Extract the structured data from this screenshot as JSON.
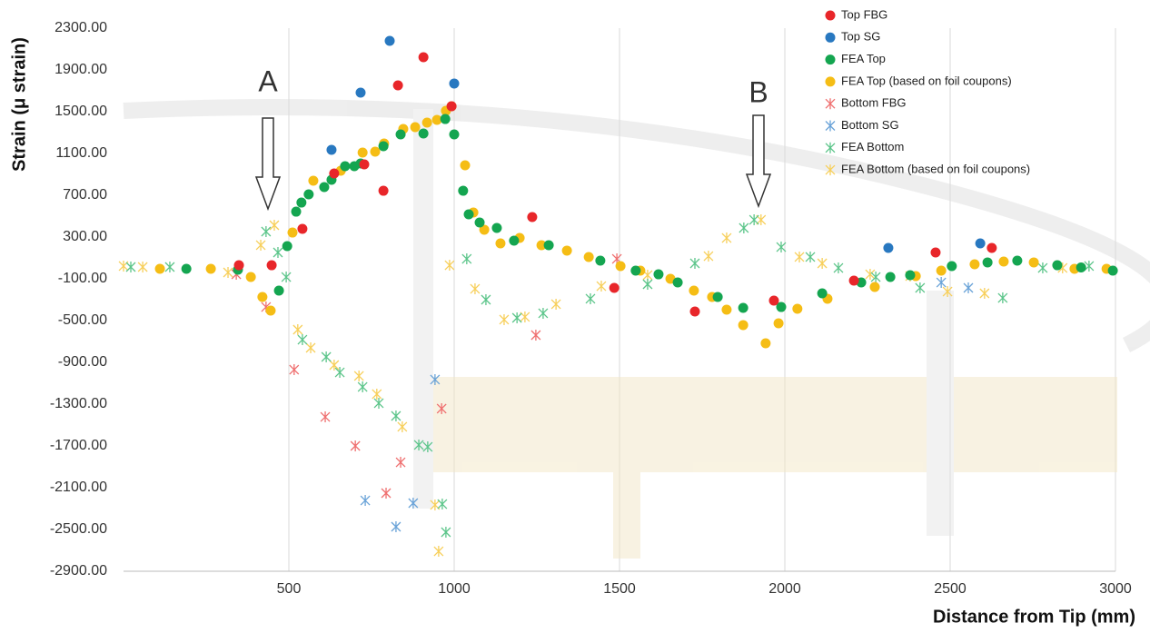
{
  "chart_data": {
    "type": "scatter",
    "xlabel": "Distance from Tip (mm)",
    "ylabel": "Strain (μ strain)",
    "annotations": [
      "A",
      "B"
    ],
    "xlim": [
      0,
      3000
    ],
    "xticks": [
      500,
      1000,
      1500,
      2000,
      2500,
      3000
    ],
    "ylim": [
      -2900,
      2300
    ],
    "yticks": [
      {
        "value": 2300,
        "label": "2300.00"
      },
      {
        "value": 1900,
        "label": "1900.00"
      },
      {
        "value": 1500,
        "label": "1500.00"
      },
      {
        "value": 1100,
        "label": "1100.00"
      },
      {
        "value": 700,
        "label": "700.00"
      },
      {
        "value": 300,
        "label": "300.00"
      },
      {
        "value": -100,
        "label": "-100.00"
      },
      {
        "value": -500,
        "label": "-500.00"
      },
      {
        "value": -900,
        "label": "-900.00"
      },
      {
        "value": -1300,
        "label": "-1300.00"
      },
      {
        "value": -1700,
        "label": "-1700.00"
      },
      {
        "value": -2100,
        "label": "-2100.00"
      },
      {
        "value": -2500,
        "label": "-2500.00"
      },
      {
        "value": -2900,
        "label": "-2900.00"
      }
    ],
    "grid": "vertical",
    "legend": "upper right",
    "series": [
      {
        "name": "Top FBG",
        "color": "#e8262a",
        "marker": "o",
        "x": [
          349,
          448,
          541,
          637,
          728,
          786,
          830,
          907,
          992,
          1236,
          1484,
          1728,
          1967,
          2209,
          2456,
          2626
        ],
        "values": [
          30,
          30,
          378,
          909,
          996,
          743,
          1752,
          2022,
          1552,
          491,
          -187,
          -413,
          -309,
          -117,
          152,
          196
        ]
      },
      {
        "name": "Top SG",
        "color": "#2878c0",
        "marker": "o",
        "x": [
          629,
          717,
          805,
          1000,
          2313,
          2591
        ],
        "values": [
          1135,
          1683,
          2178,
          1770,
          196,
          239
        ]
      },
      {
        "name": "FEA Top",
        "color": "#14a550",
        "marker": "o",
        "x": [
          190,
          346,
          470,
          495,
          522,
          538,
          560,
          607,
          629,
          670,
          698,
          717,
          786,
          838,
          907,
          973,
          1000,
          1027,
          1044,
          1077,
          1129,
          1181,
          1286,
          1442,
          1549,
          1618,
          1676,
          1797,
          1874,
          1989,
          2113,
          2231,
          2319,
          2379,
          2505,
          2613,
          2703,
          2824,
          2896,
          2992
        ],
        "values": [
          -4,
          -13,
          -213,
          213,
          543,
          630,
          709,
          778,
          848,
          978,
          978,
          1004,
          1170,
          1283,
          1291,
          1430,
          1283,
          743,
          517,
          439,
          387,
          265,
          222,
          74,
          -22,
          -57,
          -135,
          -274,
          -378,
          -370,
          -239,
          -135,
          -83,
          -65,
          22,
          57,
          74,
          30,
          9,
          -22
        ]
      },
      {
        "name": "FEA Top (based on foil coupons)",
        "color": "#f5bd15",
        "marker": "o",
        "x": [
          110,
          264,
          385,
          420,
          445,
          511,
          574,
          657,
          723,
          761,
          788,
          846,
          882,
          918,
          948,
          975,
          992,
          1033,
          1058,
          1091,
          1140,
          1198,
          1264,
          1341,
          1407,
          1503,
          1563,
          1654,
          1725,
          1780,
          1824,
          1874,
          1942,
          1981,
          2038,
          2129,
          2272,
          2396,
          2473,
          2574,
          2662,
          2753,
          2876,
          2973
        ],
        "values": [
          -4,
          -4,
          -83,
          -274,
          -404,
          343,
          839,
          935,
          1109,
          1117,
          1196,
          1335,
          1352,
          1396,
          1422,
          1509,
          1552,
          987,
          535,
          370,
          239,
          291,
          222,
          170,
          109,
          22,
          -22,
          -100,
          -213,
          -274,
          -396,
          -543,
          -717,
          -526,
          -387,
          -291,
          -178,
          -74,
          -22,
          39,
          65,
          57,
          -4,
          -4
        ]
      },
      {
        "name": "Bottom FBG",
        "color": "#ef6f6f",
        "marker": "x",
        "x": [
          341,
          431,
          516,
          610,
          701,
          794,
          838,
          962,
          1247,
          1492
        ],
        "values": [
          -57,
          -370,
          -970,
          -1422,
          -1700,
          -2152,
          -1857,
          -1343,
          -639,
          91
        ]
      },
      {
        "name": "Bottom SG",
        "color": "#6aa3d8",
        "marker": "x",
        "x": [
          731,
          824,
          876,
          942,
          2473,
          2555
        ],
        "values": [
          -2222,
          -2474,
          -2248,
          -1065,
          -135,
          -187
        ]
      },
      {
        "name": "FEA Bottom",
        "color": "#5cc58a",
        "marker": "x",
        "x": [
          22,
          140,
          431,
          467,
          492,
          541,
          613,
          654,
          723,
          772,
          824,
          893,
          920,
          964,
          975,
          1038,
          1096,
          1190,
          1269,
          1412,
          1585,
          1728,
          1876,
          1907,
          1989,
          2077,
          2162,
          2275,
          2409,
          2659,
          2780,
          2920
        ],
        "values": [
          13,
          13,
          352,
          152,
          -83,
          -683,
          -848,
          -996,
          -1135,
          -1291,
          -1413,
          -1691,
          -1709,
          -2257,
          -2526,
          91,
          -300,
          -474,
          -430,
          -291,
          -152,
          48,
          387,
          465,
          204,
          109,
          4,
          -83,
          -187,
          -283,
          4,
          22
        ]
      },
      {
        "name": "FEA Bottom (based on foil coupons)",
        "color": "#f7cf5a",
        "marker": "x",
        "x": [
          0,
          58,
          316,
          415,
          456,
          527,
          566,
          637,
          712,
          766,
          843,
          942,
          953,
          986,
          1063,
          1151,
          1214,
          1308,
          1445,
          1585,
          1769,
          1824,
          1928,
          2044,
          2113,
          2258,
          2379,
          2492,
          2604,
          2840
        ],
        "values": [
          22,
          13,
          -39,
          222,
          413,
          -587,
          -761,
          -926,
          -1030,
          -1204,
          -1517,
          -2265,
          -2709,
          30,
          -196,
          -491,
          -465,
          -343,
          -170,
          -65,
          117,
          291,
          465,
          109,
          48,
          -57,
          -74,
          -222,
          -239,
          4
        ]
      }
    ]
  }
}
